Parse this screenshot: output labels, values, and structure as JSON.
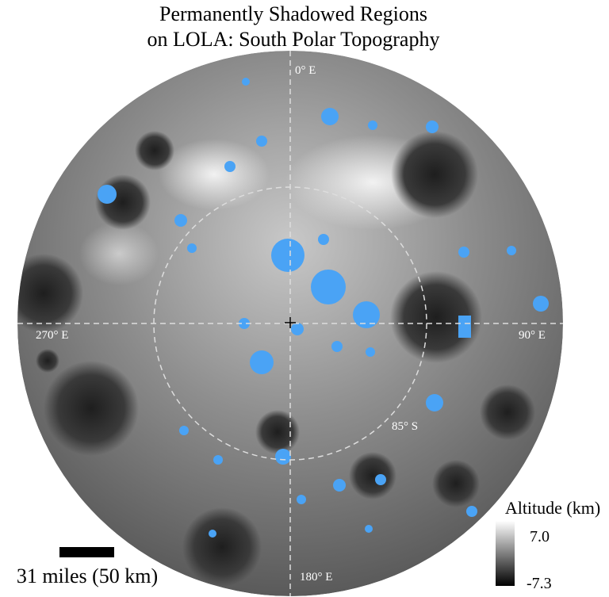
{
  "title": {
    "line1": "Permanently Shadowed Regions",
    "line2": "on LOLA: South Polar Topography"
  },
  "map": {
    "labels": {
      "north": "0° E",
      "east": "90° E",
      "west": "270° E",
      "south": "180° E",
      "latitude_ring": "85° S"
    }
  },
  "scale_bar": {
    "label": "31 miles (50 km)"
  },
  "legend": {
    "title": "Altitude (km)",
    "max_label": "7.0",
    "min_label": "-7.3"
  }
}
